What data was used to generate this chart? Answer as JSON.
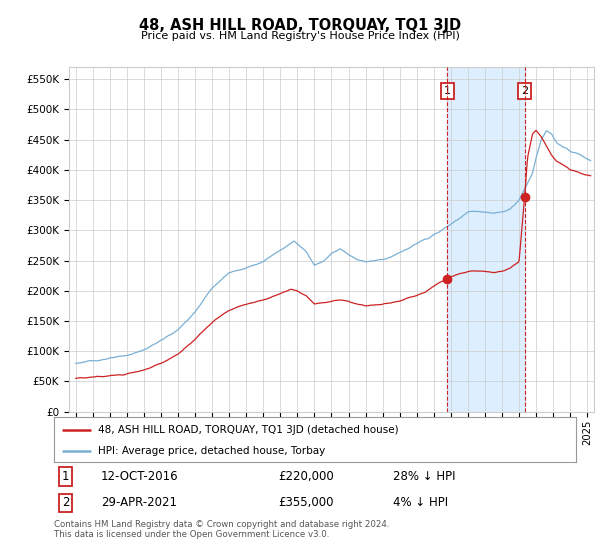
{
  "title": "48, ASH HILL ROAD, TORQUAY, TQ1 3JD",
  "subtitle": "Price paid vs. HM Land Registry's House Price Index (HPI)",
  "ylabel_ticks": [
    "£0",
    "£50K",
    "£100K",
    "£150K",
    "£200K",
    "£250K",
    "£300K",
    "£350K",
    "£400K",
    "£450K",
    "£500K",
    "£550K"
  ],
  "ytick_values": [
    0,
    50000,
    100000,
    150000,
    200000,
    250000,
    300000,
    350000,
    400000,
    450000,
    500000,
    550000
  ],
  "ylim": [
    0,
    570000
  ],
  "xlim_start": 1994.6,
  "xlim_end": 2025.4,
  "hpi_color": "#7ab0d4",
  "hpi_shade_color": "#ddeeff",
  "price_color": "#cc2222",
  "marker1_year": 2016.79,
  "marker1_value": 220000,
  "marker2_year": 2021.33,
  "marker2_value": 355000,
  "legend_line1": "48, ASH HILL ROAD, TORQUAY, TQ1 3JD (detached house)",
  "legend_line2": "HPI: Average price, detached house, Torbay",
  "table_row1": [
    "1",
    "12-OCT-2016",
    "£220,000",
    "28% ↓ HPI"
  ],
  "table_row2": [
    "2",
    "29-APR-2021",
    "£355,000",
    "4% ↓ HPI"
  ],
  "footer": "Contains HM Land Registry data © Crown copyright and database right 2024.\nThis data is licensed under the Open Government Licence v3.0.",
  "background_color": "#ffffff",
  "grid_color": "#cccccc"
}
